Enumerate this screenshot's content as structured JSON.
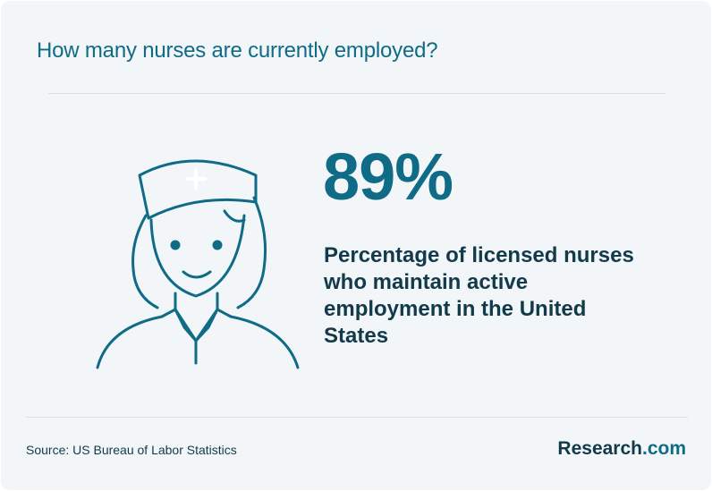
{
  "header": {
    "title": "How many nurses are currently employed?"
  },
  "stat": {
    "value": "89%",
    "description": "Percentage of licensed nurses who maintain active employment in the United States"
  },
  "footer": {
    "source": "Source: US Bureau of Labor Statistics",
    "brand_name": "Research",
    "brand_suffix": ".com"
  },
  "illustration": {
    "icon": "nurse-icon"
  },
  "colors": {
    "background": "#f2f6f8",
    "accent": "#0f6b86",
    "text_dark": "#123a4a",
    "divider": "#d7e0e4"
  }
}
